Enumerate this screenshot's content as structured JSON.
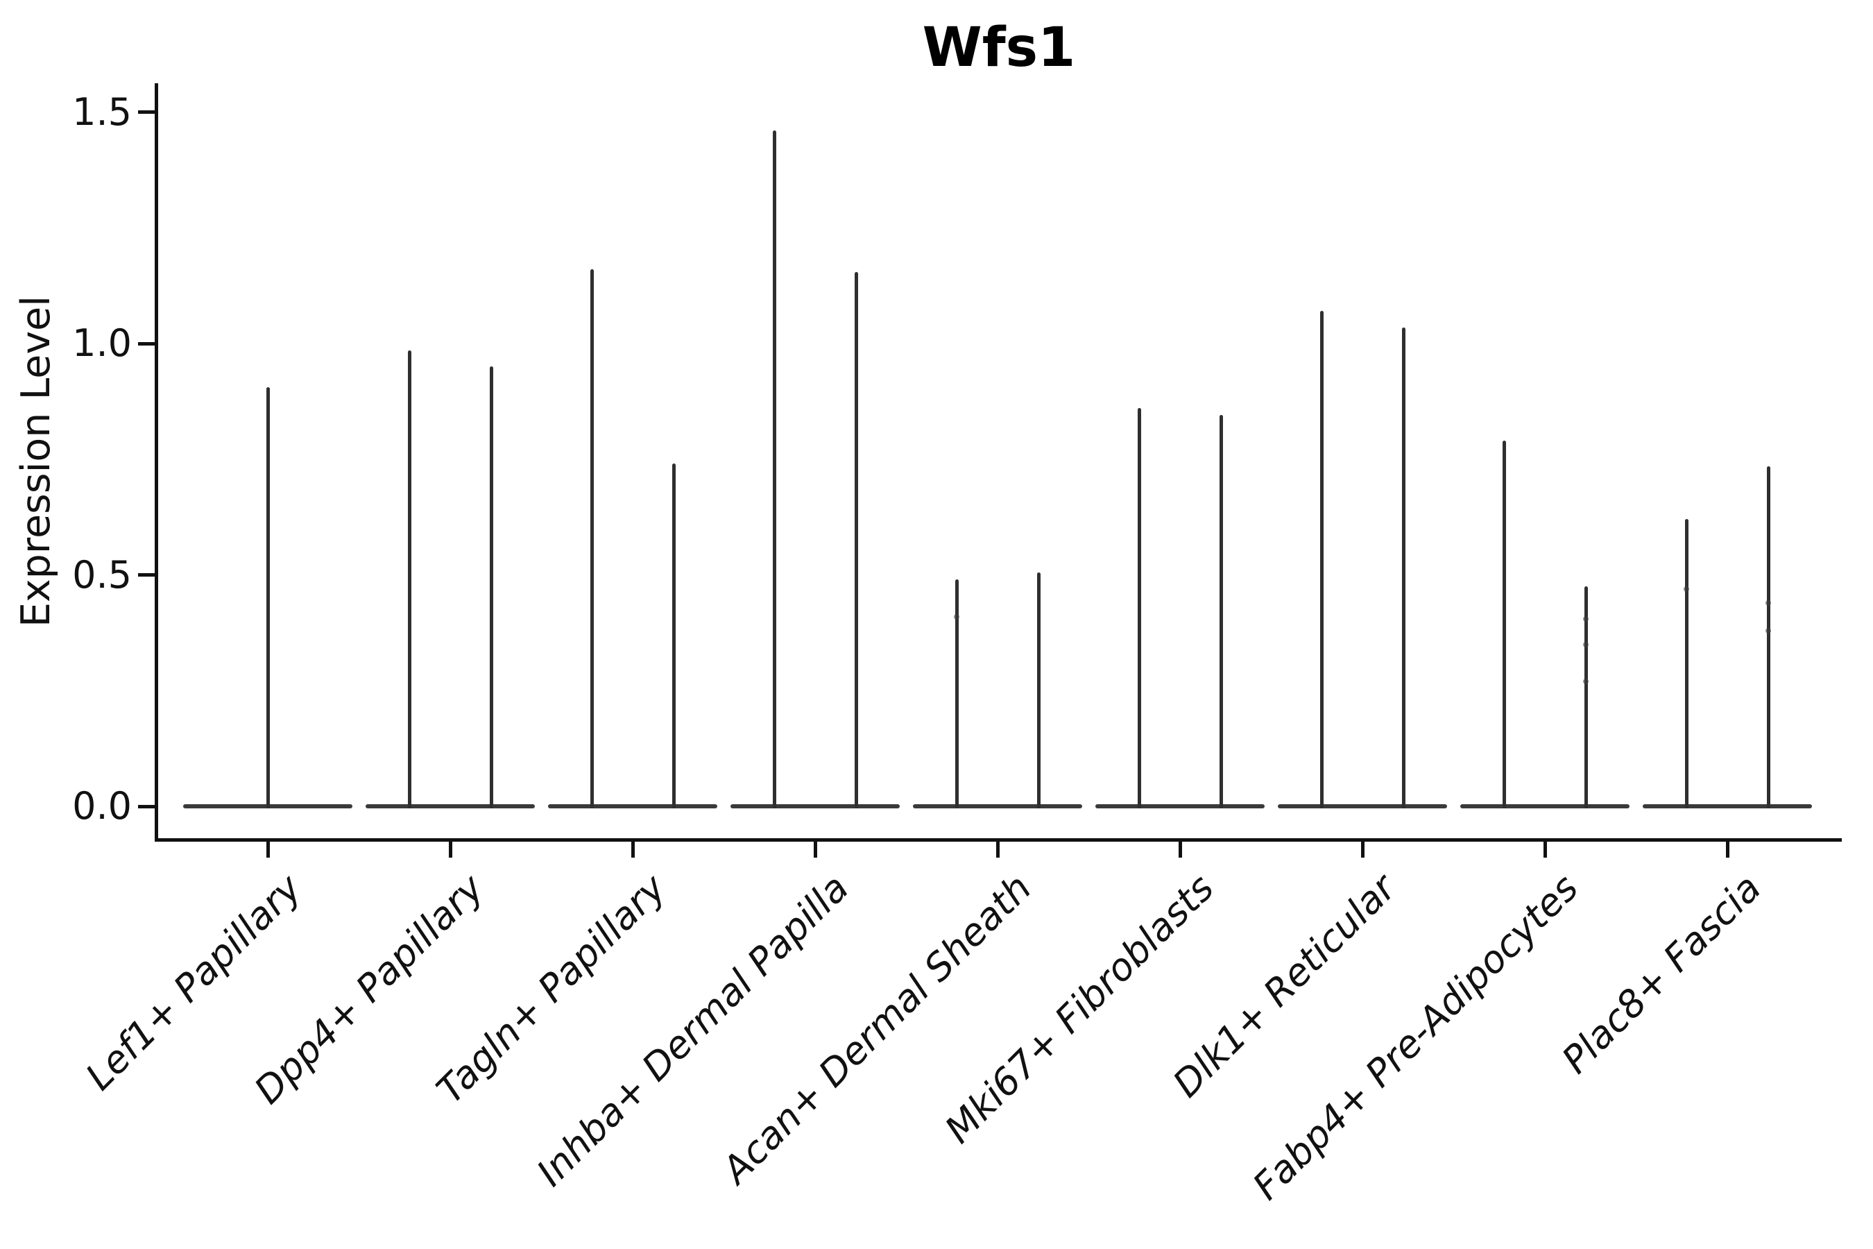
{
  "title": "Wfs1",
  "chart_data": {
    "type": "violin",
    "title": "Wfs1",
    "xlabel": "",
    "ylabel": "Expression Level",
    "ylim": [
      0,
      1.55
    ],
    "yticks": [
      "0.0",
      "0.5",
      "1.0",
      "1.5"
    ],
    "ytick_values": [
      0,
      0.5,
      1.0,
      1.5
    ],
    "grid": false,
    "legend": false,
    "background_color": "#ffffff",
    "violin_color": "#333333",
    "axis_color": "#111111",
    "categories": [
      "Lef1+ Papillary",
      "Dpp4+ Papillary",
      "Tagln+ Papillary",
      "Inhba+ Dermal Papilla",
      "Acan+ Dermal Sheath",
      "Mki67+ Fibroblasts",
      "Dlk1+ Reticular",
      "Fabp4+ Pre-Adipocytes",
      "Plac8+ Fascia"
    ],
    "groups": [
      {
        "category": "Lef1+ Papillary",
        "violins": [
          {
            "min": 0,
            "max": 0.905
          }
        ]
      },
      {
        "category": "Dpp4+ Papillary",
        "violins": [
          {
            "min": 0,
            "max": 0.985
          },
          {
            "min": 0,
            "max": 0.95
          }
        ]
      },
      {
        "category": "Tagln+ Papillary",
        "violins": [
          {
            "min": 0,
            "max": 1.16
          },
          {
            "min": 0,
            "max": 0.74
          }
        ]
      },
      {
        "category": "Inhba+ Dermal Papilla",
        "violins": [
          {
            "min": 0,
            "max": 1.46
          },
          {
            "min": 0,
            "max": 1.155
          }
        ]
      },
      {
        "category": "Acan+ Dermal Sheath",
        "violins": [
          {
            "min": 0,
            "max": 0.49,
            "dots": [
              0.41
            ]
          },
          {
            "min": 0,
            "max": 0.505
          }
        ]
      },
      {
        "category": "Mki67+ Fibroblasts",
        "violins": [
          {
            "min": 0,
            "max": 0.86
          },
          {
            "min": 0,
            "max": 0.845
          }
        ]
      },
      {
        "category": "Dlk1+ Reticular",
        "violins": [
          {
            "min": 0,
            "max": 1.07
          },
          {
            "min": 0,
            "max": 1.035
          }
        ]
      },
      {
        "category": "Fabp4+ Pre-Adipocytes",
        "violins": [
          {
            "min": 0,
            "max": 0.79
          },
          {
            "min": 0,
            "max": 0.475,
            "dots": [
              0.405,
              0.35,
              0.27
            ]
          }
        ]
      },
      {
        "category": "Plac8+ Fascia",
        "violins": [
          {
            "min": 0,
            "max": 0.62,
            "dots": [
              0.47
            ]
          },
          {
            "min": 0,
            "max": 0.735,
            "dots": [
              0.44,
              0.38
            ]
          }
        ]
      }
    ]
  }
}
